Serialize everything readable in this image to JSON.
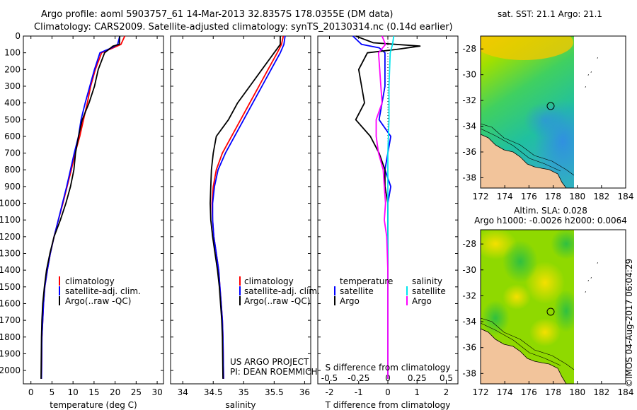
{
  "header": {
    "line1": "Argo profile: aoml 5903757_61 14-Mar-2013 32.8357S 178.0355E (DM data)",
    "line2": "Climatology: CARS2009. Satellite-adjusted climatology: synTS_20130314.nc (0.14d earlier)"
  },
  "colors": {
    "climatology": "#ff0000",
    "satellite": "#0000ff",
    "argo": "#000000",
    "sal_satellite": "#00e5ee",
    "sal_argo": "#ff00ff"
  },
  "chart_data": [
    {
      "type": "line",
      "title": "",
      "xlabel": "temperature (deg C)",
      "ylabel": "",
      "xlim": [
        -1.8,
        31.5
      ],
      "ylim": [
        2080,
        0
      ],
      "xticks": [
        0,
        5,
        10,
        15,
        20,
        25,
        30
      ],
      "yticks": [
        0,
        100,
        200,
        300,
        400,
        500,
        600,
        700,
        800,
        900,
        1000,
        1100,
        1200,
        1300,
        1400,
        1500,
        1600,
        1700,
        1800,
        1900,
        2000
      ],
      "legend": [
        "climatology",
        "satellite-adj. clim.",
        "Argo(..raw -QC)"
      ],
      "series": [
        {
          "name": "climatology",
          "x": [
            22.3,
            21.4,
            19.6,
            16.8,
            15.3,
            14.2,
            13.4,
            12.5,
            11.6,
            10.5,
            9.6,
            8.6,
            7.6,
            6.5,
            5.5,
            4.6,
            3.9,
            3.3,
            3.0,
            2.8,
            2.6,
            2.5
          ],
          "y": [
            0,
            50,
            70,
            100,
            200,
            300,
            400,
            500,
            600,
            700,
            800,
            900,
            1000,
            1100,
            1200,
            1300,
            1400,
            1500,
            1600,
            1700,
            1800,
            2050
          ]
        },
        {
          "name": "satellite-adj. clim.",
          "x": [
            21.1,
            20.6,
            19.2,
            16.4,
            15.1,
            14.0,
            12.9,
            11.9,
            11.3,
            10.3,
            9.4,
            8.5,
            7.5,
            6.5,
            5.5,
            4.6,
            3.9,
            3.3,
            3.0,
            2.8,
            2.6,
            2.5
          ],
          "y": [
            0,
            50,
            70,
            100,
            200,
            300,
            400,
            500,
            600,
            700,
            800,
            900,
            1000,
            1100,
            1200,
            1300,
            1400,
            1500,
            1600,
            1700,
            1800,
            2050
          ]
        },
        {
          "name": "Argo(..raw -QC)",
          "x": [
            21.1,
            21.0,
            19.5,
            17.5,
            16.0,
            15.1,
            13.8,
            12.2,
            11.3,
            10.6,
            10.2,
            9.4,
            8.3,
            7.0,
            5.5,
            4.5,
            3.7,
            3.2,
            2.8,
            2.6,
            2.5,
            2.4
          ],
          "y": [
            0,
            50,
            60,
            100,
            200,
            300,
            400,
            500,
            600,
            700,
            800,
            900,
            1000,
            1100,
            1200,
            1300,
            1400,
            1500,
            1600,
            1700,
            1800,
            2050
          ]
        }
      ]
    },
    {
      "type": "line",
      "title": "",
      "xlabel": "salinity",
      "ylabel": "",
      "xlim": [
        33.8,
        36.1
      ],
      "ylim": [
        2080,
        0
      ],
      "xticks": [
        34,
        34.5,
        35,
        35.5,
        36
      ],
      "legend": [
        "climatology",
        "satellite-adj. clim.",
        "Argo(..raw -QC)"
      ],
      "annotation": [
        "US ARGO PROJECT",
        "PI: DEAN ROEMMICH"
      ],
      "series": [
        {
          "name": "climatology",
          "x": [
            35.65,
            35.62,
            35.55,
            35.4,
            35.25,
            35.1,
            34.95,
            34.8,
            34.65,
            34.55,
            34.5,
            34.48,
            34.49,
            34.51,
            34.55,
            34.59,
            34.61,
            34.63,
            34.65,
            34.66,
            34.67
          ],
          "y": [
            0,
            50,
            100,
            200,
            300,
            400,
            500,
            600,
            700,
            800,
            900,
            1000,
            1100,
            1200,
            1300,
            1400,
            1500,
            1600,
            1700,
            1800,
            2050
          ]
        },
        {
          "name": "satellite-adj. clim.",
          "x": [
            35.68,
            35.66,
            35.6,
            35.45,
            35.3,
            35.15,
            35.0,
            34.85,
            34.7,
            34.58,
            34.52,
            34.49,
            34.49,
            34.51,
            34.55,
            34.59,
            34.61,
            34.63,
            34.65,
            34.66,
            34.67
          ],
          "y": [
            0,
            50,
            100,
            200,
            300,
            400,
            500,
            600,
            700,
            800,
            900,
            1000,
            1100,
            1200,
            1300,
            1400,
            1500,
            1600,
            1700,
            1800,
            2050
          ]
        },
        {
          "name": "Argo(..raw -QC)",
          "x": [
            35.6,
            35.6,
            35.5,
            35.3,
            35.1,
            34.9,
            34.75,
            34.55,
            34.5,
            34.47,
            34.46,
            34.45,
            34.46,
            34.49,
            34.53,
            34.57,
            34.6,
            34.62,
            34.64,
            34.65,
            34.66
          ],
          "y": [
            0,
            50,
            100,
            200,
            300,
            400,
            500,
            600,
            700,
            800,
            900,
            1000,
            1100,
            1200,
            1300,
            1400,
            1500,
            1600,
            1700,
            1800,
            2050
          ]
        }
      ]
    },
    {
      "type": "line",
      "title": "",
      "xlabel": "T difference from climatology",
      "xlabel2": "S difference from climatology",
      "xlim": [
        -2.4,
        2.4
      ],
      "ylim": [
        2080,
        0
      ],
      "xticks": [
        -2,
        -1,
        0,
        1,
        2
      ],
      "xticks2": [
        -0.5,
        -0.25,
        0,
        0.25,
        0.5
      ],
      "legend_temperature": [
        "temperature",
        "satellite",
        "Argo"
      ],
      "legend_salinity": [
        "salinity",
        "satellite",
        "Argo"
      ],
      "series": [
        {
          "name": "temperature satellite",
          "x": [
            -1.2,
            -0.9,
            -0.3,
            -0.1,
            -0.1,
            -0.3,
            0.1,
            -0.1,
            0.1,
            0.0,
            0.0,
            0.0,
            0.0,
            0.0,
            0.0,
            0.0,
            0.0,
            0.0,
            0.0,
            0.0
          ],
          "y": [
            0,
            50,
            70,
            100,
            300,
            500,
            600,
            800,
            900,
            1000,
            1200,
            1300,
            1400,
            1500,
            1600,
            1700,
            1800,
            1900,
            2000,
            2050
          ]
        },
        {
          "name": "temperature Argo",
          "x": [
            -1.1,
            -0.5,
            1.1,
            0.3,
            -0.7,
            -1.0,
            -0.9,
            -0.8,
            -1.1,
            -0.6,
            -0.3,
            -0.1,
            -0.1,
            0.0,
            0.0,
            0.0,
            0.0,
            0.0
          ],
          "y": [
            0,
            40,
            60,
            80,
            100,
            200,
            300,
            400,
            500,
            600,
            700,
            800,
            900,
            1000,
            1200,
            1500,
            1800,
            2050
          ]
        },
        {
          "name": "salinity satellite",
          "x": [
            0.05,
            0.04,
            0.02,
            0.01,
            0.01,
            0.0,
            0.0,
            0.0,
            0.0,
            0.0,
            0.0,
            0.0
          ],
          "y": [
            0,
            50,
            100,
            300,
            500,
            700,
            900,
            1100,
            1300,
            1500,
            1800,
            2050
          ]
        },
        {
          "name": "salinity Argo",
          "x": [
            -0.05,
            -0.02,
            -0.08,
            -0.07,
            -0.06,
            -0.05,
            -0.1,
            -0.1,
            -0.08,
            -0.04,
            -0.03,
            -0.02,
            -0.03,
            -0.01,
            0.0,
            0.0,
            0.0
          ],
          "y": [
            0,
            50,
            100,
            200,
            300,
            400,
            500,
            600,
            700,
            800,
            900,
            1000,
            1100,
            1200,
            1400,
            1700,
            2050
          ]
        }
      ]
    }
  ],
  "maps": {
    "top_title": "sat. SST: 21.1  Argo: 21.1",
    "bottom_title1": "Altim. SLA: 0.028",
    "bottom_title2": "Argo h1000: -0.0026 h2000: 0.0064",
    "xticks": [
      172,
      174,
      176,
      178,
      180,
      182,
      184
    ],
    "yticks": [
      -28,
      -30,
      -32,
      -34,
      -36,
      -38
    ],
    "float_position": {
      "lon": 178.0355,
      "lat": -32.8357
    }
  },
  "footer": {
    "credit": "©IMOS 04-Aug-2017 06:04:29"
  }
}
